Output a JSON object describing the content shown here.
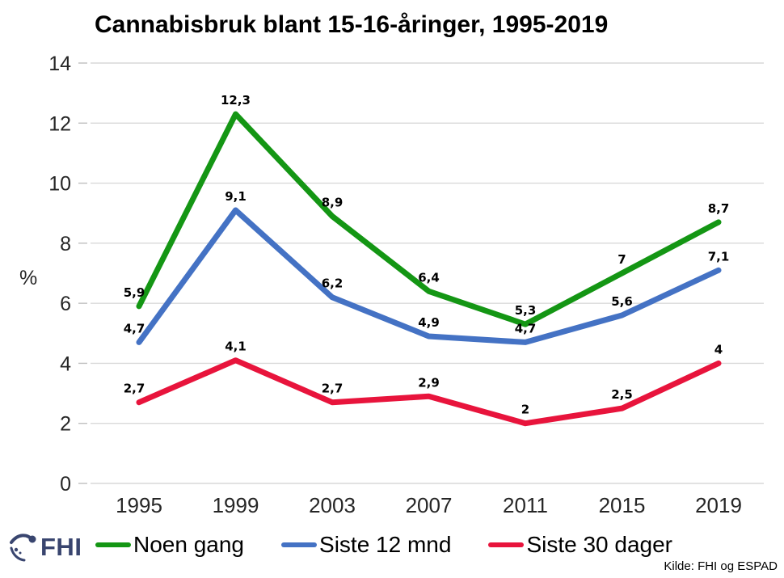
{
  "chart": {
    "title": "Cannabisbruk blant 15-16-åringer, 1995-2019",
    "ylabel": "%",
    "source": "Kilde: FHI og ESPAD"
  },
  "logo": {
    "text": "FHI",
    "color": "#39456F"
  },
  "chart_data": {
    "type": "line",
    "title": "Cannabisbruk blant 15-16-åringer, 1995-2019",
    "xlabel": "",
    "ylabel": "%",
    "categories": [
      "1995",
      "1999",
      "2003",
      "2007",
      "2011",
      "2015",
      "2019"
    ],
    "series": [
      {
        "name": "Noen gang",
        "color": "#149614",
        "values": [
          5.9,
          12.3,
          8.9,
          6.4,
          5.3,
          7,
          8.7
        ],
        "labels": [
          "5,9",
          "12,3",
          "8,9",
          "6,4",
          "5,3",
          "7",
          "8,7"
        ]
      },
      {
        "name": "Siste 12 mnd",
        "color": "#4472C4",
        "values": [
          4.7,
          9.1,
          6.2,
          4.9,
          4.7,
          5.6,
          7.1
        ],
        "labels": [
          "4,7",
          "9,1",
          "6,2",
          "4,9",
          "4,7",
          "5,6",
          "7,1"
        ]
      },
      {
        "name": "Siste 30 dager",
        "color": "#E8143C",
        "values": [
          2.7,
          4.1,
          2.7,
          2.9,
          2,
          2.5,
          4
        ],
        "labels": [
          "2,7",
          "4,1",
          "2,7",
          "2,9",
          "2",
          "2,5",
          "4"
        ]
      }
    ],
    "yticks": [
      0,
      2,
      4,
      6,
      8,
      10,
      12,
      14
    ],
    "ylim": [
      0,
      14
    ],
    "grid": true,
    "gridline_color": "#D9D9D9",
    "legend_position": "bottom"
  }
}
